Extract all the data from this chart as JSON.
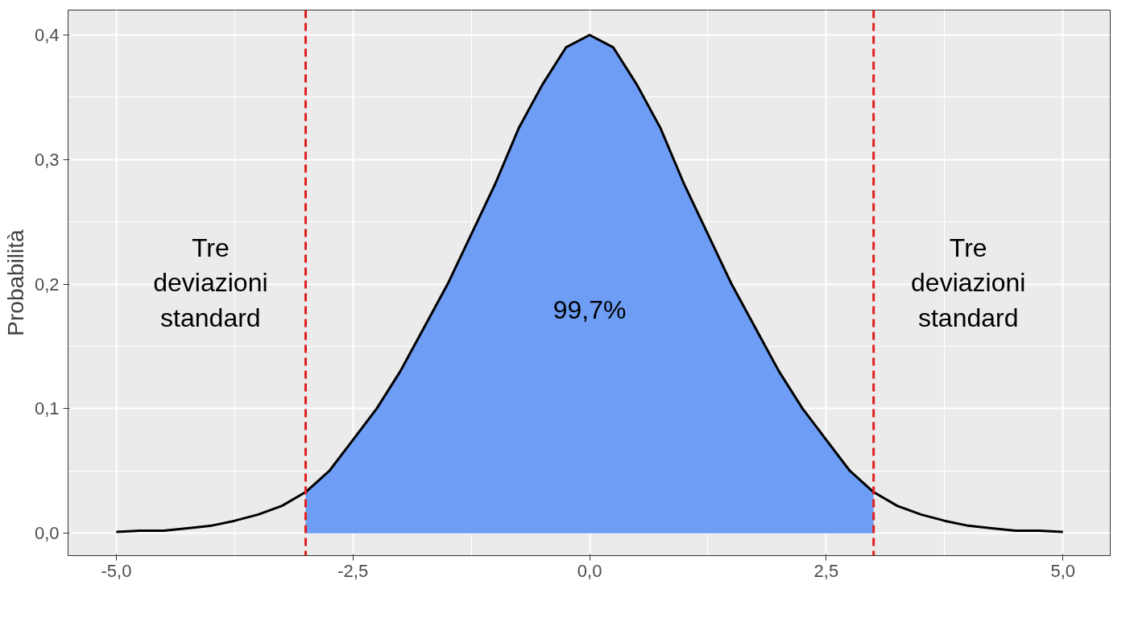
{
  "chart_data": {
    "type": "line",
    "ylabel": "Probabilità",
    "xlim": [
      -5.51,
      5.5
    ],
    "ylim": [
      -0.018,
      0.42
    ],
    "xticks": [
      {
        "value": -5,
        "label": "-5,0"
      },
      {
        "value": -2.5,
        "label": "-2,5"
      },
      {
        "value": 0,
        "label": "0,0"
      },
      {
        "value": 2.5,
        "label": "2,5"
      },
      {
        "value": 5,
        "label": "5,0"
      }
    ],
    "yticks": [
      {
        "value": 0,
        "label": "0,0"
      },
      {
        "value": 0.1,
        "label": "0,1"
      },
      {
        "value": 0.2,
        "label": "0,2"
      },
      {
        "value": 0.3,
        "label": "0,3"
      },
      {
        "value": 0.4,
        "label": "0,4"
      }
    ],
    "grid": true,
    "series": [
      {
        "type": "area",
        "color": "#6d9df5",
        "x": [
          -3,
          -2.75,
          -2.5,
          -2.25,
          -2,
          -1.75,
          -1.5,
          -1.25,
          -1,
          -0.75,
          -0.5,
          -0.25,
          0,
          0.25,
          0.5,
          0.75,
          1,
          1.25,
          1.5,
          1.75,
          2,
          2.25,
          2.5,
          2.75,
          3
        ],
        "values": [
          0.033,
          0.05,
          0.075,
          0.1,
          0.13,
          0.165,
          0.2,
          0.24,
          0.28,
          0.325,
          0.36,
          0.39,
          0.4,
          0.39,
          0.36,
          0.325,
          0.28,
          0.24,
          0.2,
          0.165,
          0.13,
          0.1,
          0.075,
          0.05,
          0.033
        ]
      },
      {
        "color": "#000000",
        "x": [
          -5,
          -4.75,
          -4.5,
          -4.25,
          -4,
          -3.75,
          -3.5,
          -3.25,
          -3,
          -2.75,
          -2.5,
          -2.25,
          -2,
          -1.75,
          -1.5,
          -1.25,
          -1,
          -0.75,
          -0.5,
          -0.25,
          0,
          0.25,
          0.5,
          0.75,
          1,
          1.25,
          1.5,
          1.75,
          2,
          2.25,
          2.5,
          2.75,
          3,
          3.25,
          3.5,
          3.75,
          4,
          4.25,
          4.5,
          4.75,
          5
        ],
        "values": [
          0.001,
          0.002,
          0.002,
          0.004,
          0.006,
          0.01,
          0.015,
          0.022,
          0.033,
          0.05,
          0.075,
          0.1,
          0.13,
          0.165,
          0.2,
          0.24,
          0.28,
          0.325,
          0.36,
          0.39,
          0.4,
          0.39,
          0.36,
          0.325,
          0.28,
          0.24,
          0.2,
          0.165,
          0.13,
          0.1,
          0.075,
          0.05,
          0.033,
          0.022,
          0.015,
          0.01,
          0.006,
          0.004,
          0.002,
          0.002,
          0.001
        ]
      }
    ],
    "ref_lines": [
      {
        "axis": "x",
        "value": -3,
        "color": "#e0201f",
        "line_style": "dashed"
      },
      {
        "axis": "x",
        "value": 3,
        "color": "#e0201f",
        "line_style": "dashed"
      }
    ],
    "annotations": [
      "Tre\ndeviazioni\nstandard",
      "99,7%",
      "Tre\ndeviazioni\nstandard"
    ]
  }
}
